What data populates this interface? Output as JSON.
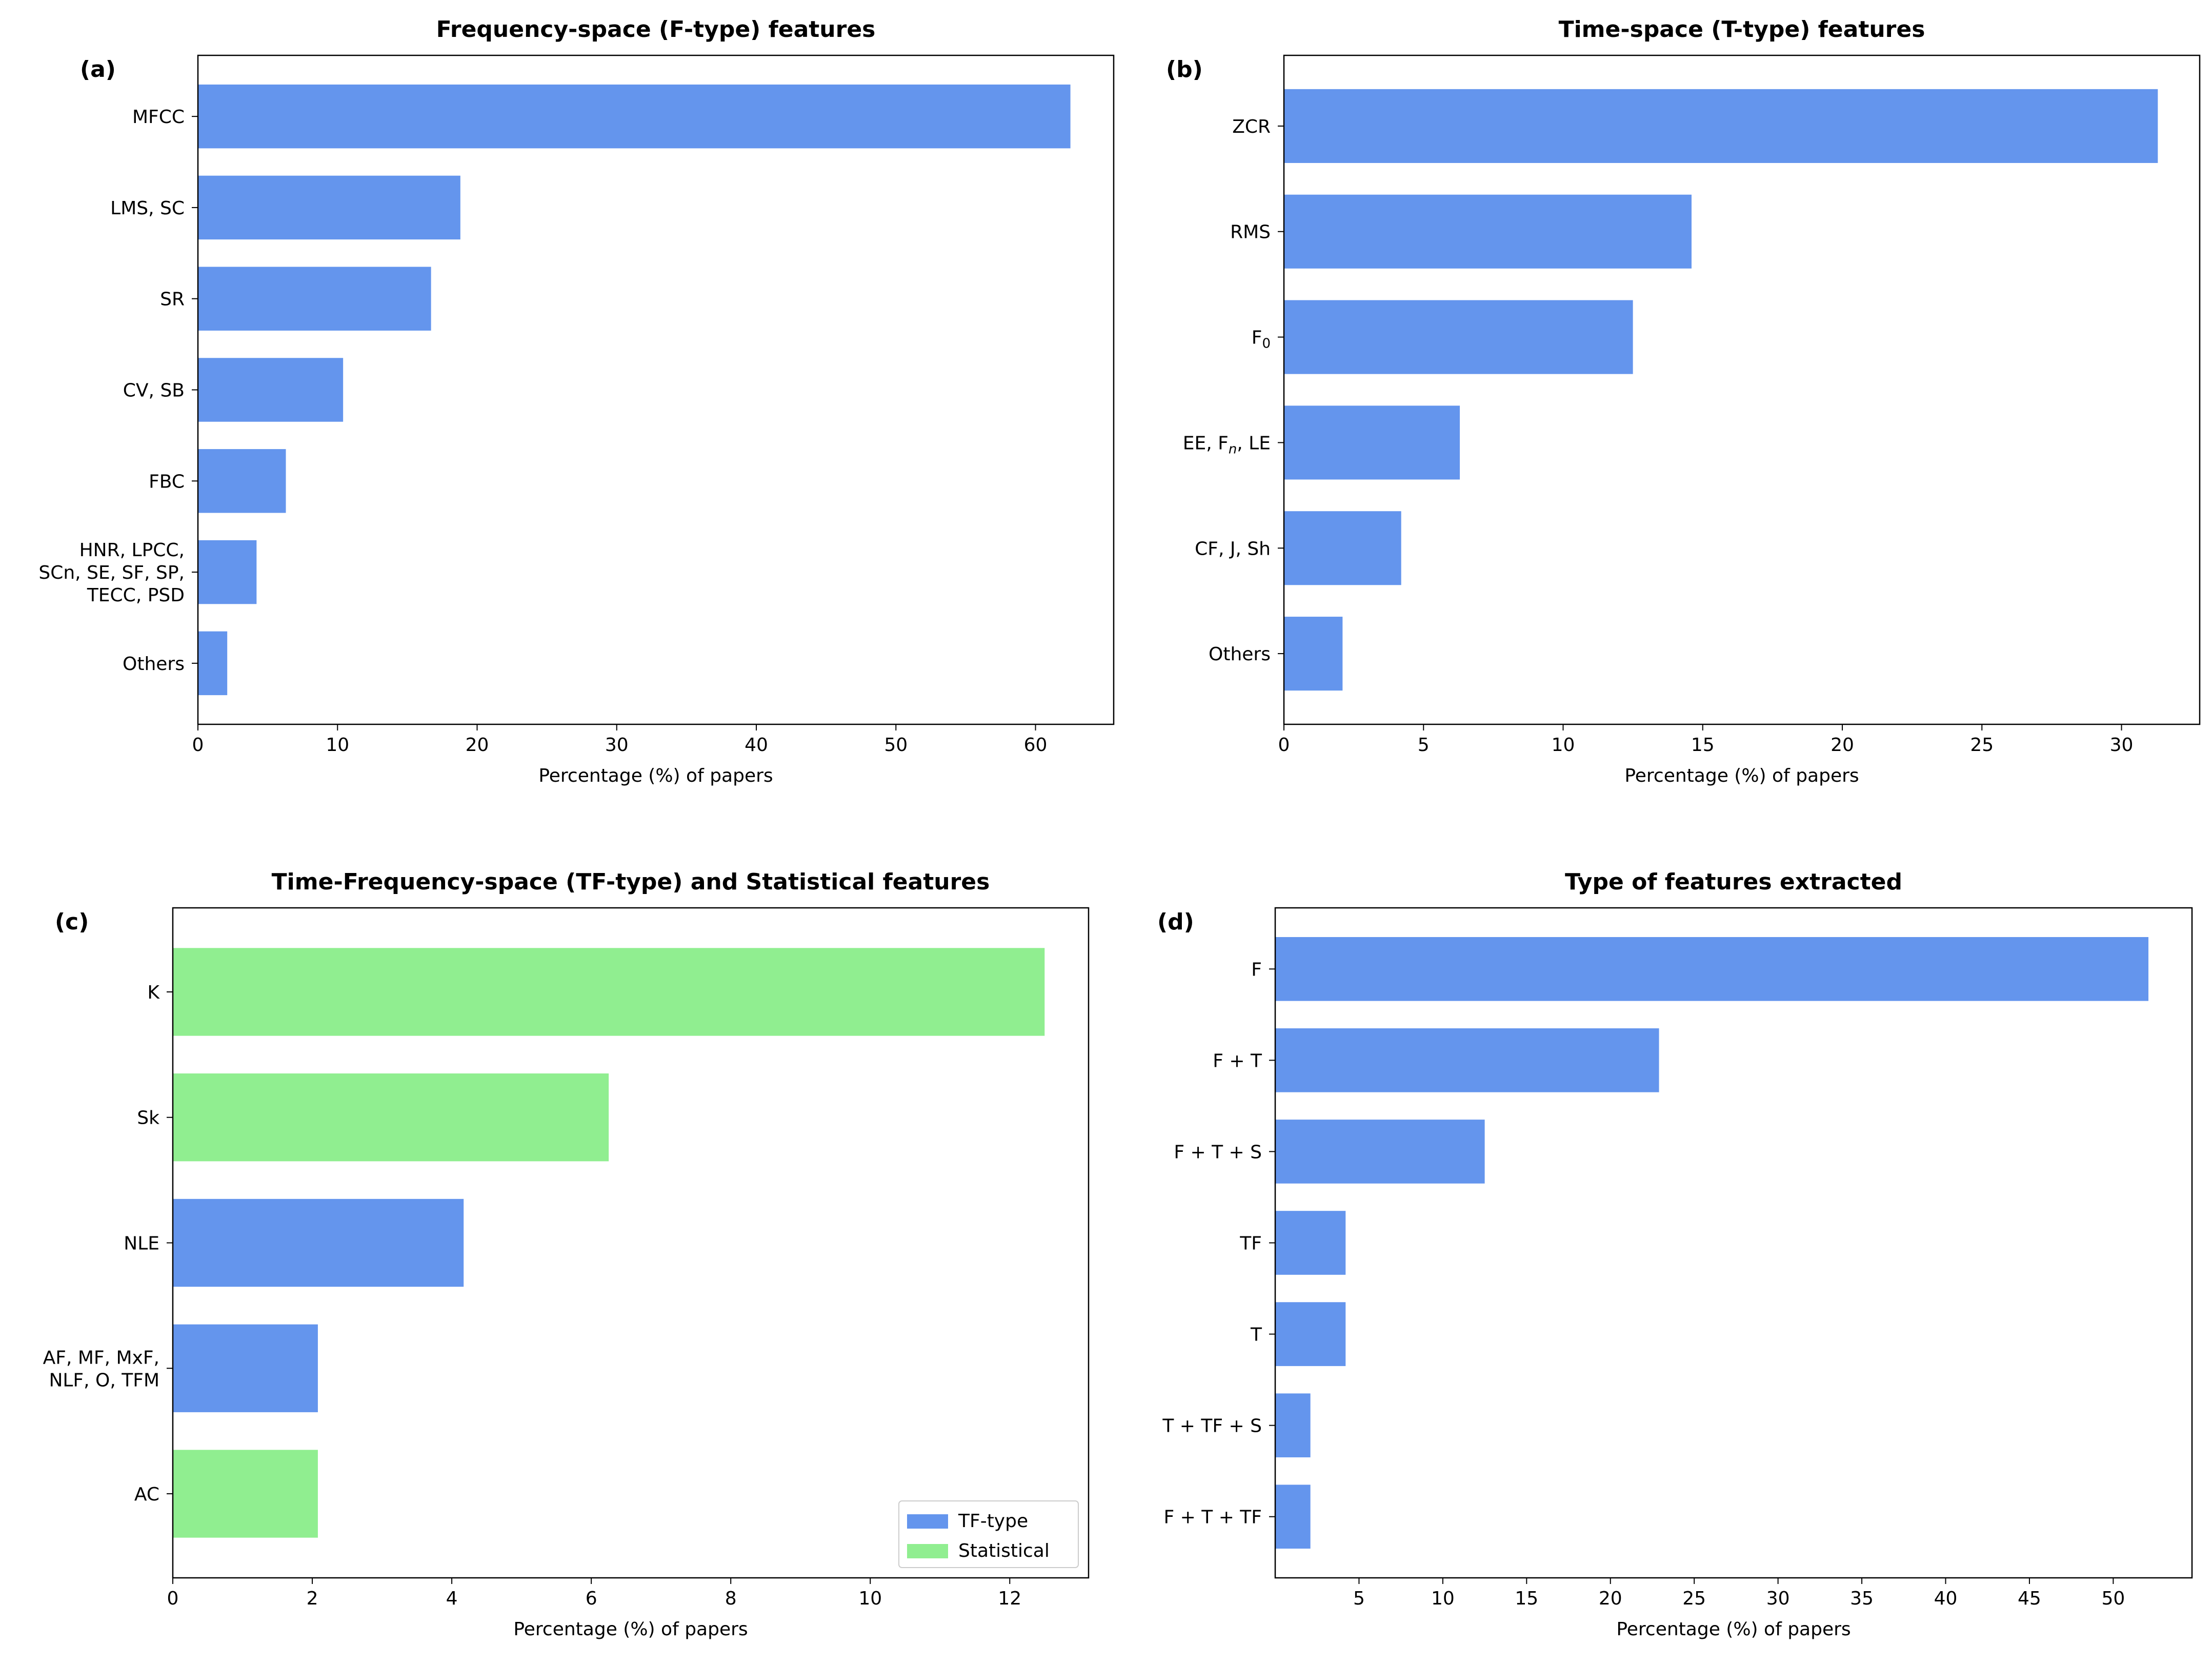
{
  "colors": {
    "tf_type": "#6495ED",
    "statistical": "#90EE90",
    "axis": "#000000",
    "background": "#ffffff"
  },
  "chart_data": [
    {
      "type": "bar",
      "orientation": "horizontal",
      "panel_label": "(a)",
      "title": "Frequency-space (F-type) features",
      "xlabel": "Percentage (%) of papers",
      "ylabel": "",
      "xlim": [
        0,
        65.6
      ],
      "xticks": [
        0,
        10,
        20,
        30,
        40,
        50,
        60
      ],
      "grid": false,
      "categories": [
        "MFCC",
        "LMS, SC",
        "SR",
        "CV, SB",
        "FBC",
        "HNR, LPCC,\nSCn, SE, SF, SP,\nTECC, PSD",
        "Others"
      ],
      "values": [
        62.5,
        18.8,
        16.7,
        10.4,
        6.3,
        4.2,
        2.1
      ],
      "bar_colors": [
        "tf_type",
        "tf_type",
        "tf_type",
        "tf_type",
        "tf_type",
        "tf_type",
        "tf_type"
      ]
    },
    {
      "type": "bar",
      "orientation": "horizontal",
      "panel_label": "(b)",
      "title": "Time-space (T-type) features",
      "xlabel": "Percentage (%) of papers",
      "ylabel": "",
      "xlim": [
        0,
        32.8
      ],
      "xticks": [
        0,
        5,
        10,
        15,
        20,
        25,
        30
      ],
      "grid": false,
      "categories": [
        "ZCR",
        "RMS",
        "F_{0}",
        "EE, F_{n}, LE",
        "CF, J, Sh",
        "Others"
      ],
      "values": [
        31.3,
        14.6,
        12.5,
        6.3,
        4.2,
        2.1
      ],
      "bar_colors": [
        "tf_type",
        "tf_type",
        "tf_type",
        "tf_type",
        "tf_type",
        "tf_type"
      ]
    },
    {
      "type": "bar",
      "orientation": "horizontal",
      "panel_label": "(c)",
      "title": "Time-Frequency-space (TF-type) and Statistical features",
      "xlabel": "Percentage (%) of papers",
      "ylabel": "",
      "xlim": [
        0,
        13.13
      ],
      "xticks": [
        0,
        2,
        4,
        6,
        8,
        10,
        12
      ],
      "grid": false,
      "categories": [
        "K",
        "Sk",
        "NLE",
        "AF, MF, MxF,\nNLF, O, TFM",
        "AC"
      ],
      "values": [
        12.5,
        6.25,
        4.17,
        2.08,
        2.08
      ],
      "bar_colors": [
        "statistical",
        "statistical",
        "tf_type",
        "tf_type",
        "statistical"
      ],
      "legend": {
        "placement": "lower-right",
        "entries": [
          {
            "label": "TF-type",
            "color": "tf_type"
          },
          {
            "label": "Statistical",
            "color": "statistical"
          }
        ]
      }
    },
    {
      "type": "bar",
      "orientation": "horizontal",
      "panel_label": "(d)",
      "title": "Type of features extracted",
      "xlabel": "Percentage (%) of papers",
      "ylabel": "",
      "xlim": [
        0,
        54.7
      ],
      "xticks": [
        5,
        10,
        15,
        20,
        25,
        30,
        35,
        40,
        45,
        50
      ],
      "grid": false,
      "categories": [
        "F",
        "F + T",
        "F + T + S",
        "TF",
        "T",
        "T + TF + S",
        "F + T + TF"
      ],
      "values": [
        52.1,
        22.9,
        12.5,
        4.2,
        4.2,
        2.1,
        2.1
      ],
      "bar_colors": [
        "tf_type",
        "tf_type",
        "tf_type",
        "tf_type",
        "tf_type",
        "tf_type",
        "tf_type"
      ]
    }
  ]
}
